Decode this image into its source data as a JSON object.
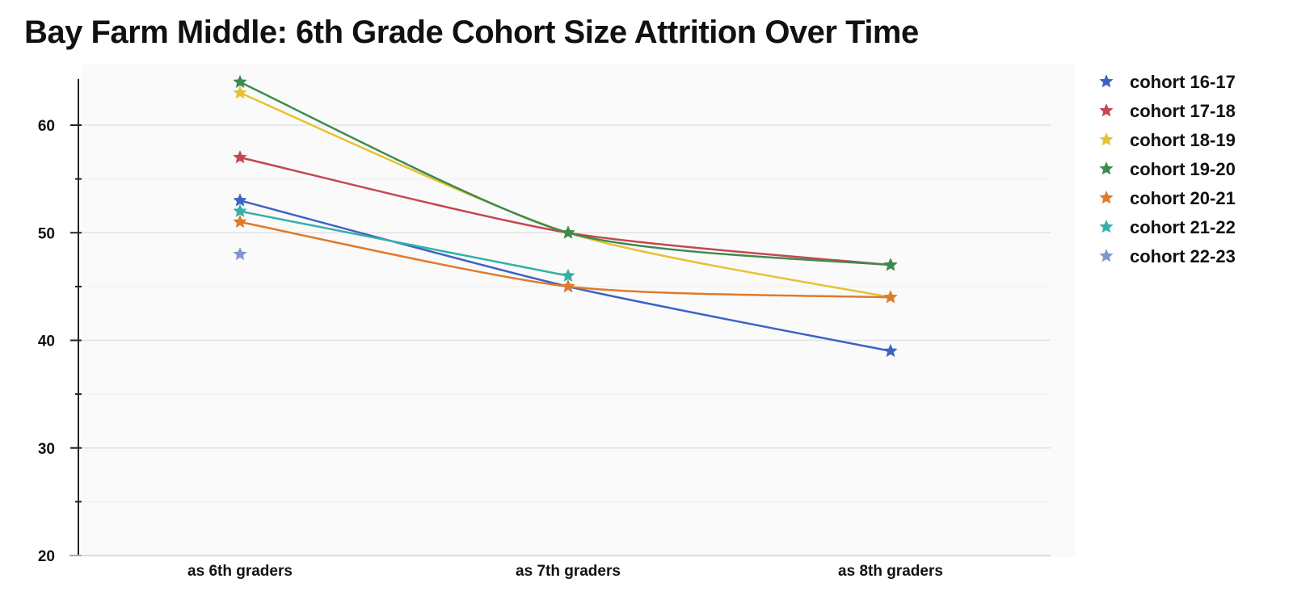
{
  "chart_data": {
    "type": "line",
    "title": "Bay Farm Middle: 6th Grade Cohort Size Attrition Over Time",
    "xlabel": "",
    "ylabel": "",
    "categories": [
      "as 6th graders",
      "as 7th graders",
      "as 8th graders"
    ],
    "ylim": [
      20,
      64
    ],
    "yticks": [
      20,
      30,
      40,
      50,
      60
    ],
    "grid": true,
    "legend": "right",
    "series": [
      {
        "name": "cohort 16-17",
        "color": "#3f62c4",
        "values": [
          53,
          45,
          39
        ]
      },
      {
        "name": "cohort 17-18",
        "color": "#c4474f",
        "values": [
          57,
          50,
          47
        ]
      },
      {
        "name": "cohort 18-19",
        "color": "#e6c234",
        "values": [
          63,
          50,
          44
        ]
      },
      {
        "name": "cohort 19-20",
        "color": "#3d8a4f",
        "values": [
          64,
          50,
          47
        ]
      },
      {
        "name": "cohort 20-21",
        "color": "#e07a2c",
        "values": [
          51,
          45,
          44
        ]
      },
      {
        "name": "cohort 21-22",
        "color": "#35b0a8",
        "values": [
          52,
          46,
          null
        ]
      },
      {
        "name": "cohort 22-23",
        "color": "#7f98cc",
        "values": [
          48,
          null,
          null
        ]
      }
    ]
  }
}
